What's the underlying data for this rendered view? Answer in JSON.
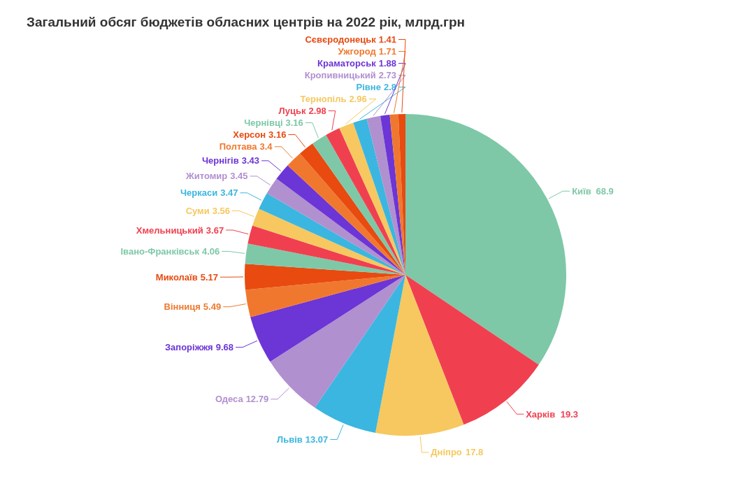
{
  "chart_data": {
    "type": "pie",
    "title": "Загальний обсяг бюджетів обласних центрів на 2022 рік, млрд.грн",
    "categories": [
      "Київ",
      "Харків",
      "Дніпро",
      "Львів",
      "Одеса",
      "Запоріжжя",
      "Вінниця",
      "Миколаїв",
      "Івано-Франківськ",
      "Хмельницький",
      "Суми",
      "Черкаси",
      "Житомир",
      "Чернігів",
      "Полтава",
      "Херсон",
      "Чернівці",
      "Луцьк",
      "Тернопіль",
      "Рівне",
      "Кропивницький",
      "Краматорськ",
      "Ужгород",
      "Сєвєродонецьк"
    ],
    "values": [
      68.9,
      19.3,
      17.8,
      13.07,
      12.79,
      9.68,
      5.49,
      5.17,
      4.06,
      3.67,
      3.56,
      3.47,
      3.45,
      3.43,
      3.4,
      3.16,
      3.16,
      2.98,
      2.96,
      2.8,
      2.73,
      1.88,
      1.71,
      1.41
    ],
    "colors": [
      "#7ec8a7",
      "#f0404f",
      "#f6c85f",
      "#3bb6e0",
      "#b190cf",
      "#6c35d6",
      "#f0782e",
      "#e84a10",
      "#7ec8a7",
      "#f0404f",
      "#f6c85f",
      "#3bb6e0",
      "#b190cf",
      "#6c35d6",
      "#f0782e",
      "#e84a10",
      "#7ec8a7",
      "#f0404f",
      "#f6c85f",
      "#3bb6e0",
      "#b190cf",
      "#6c35d6",
      "#f0782e",
      "#e84a10"
    ],
    "data_labels": true
  }
}
